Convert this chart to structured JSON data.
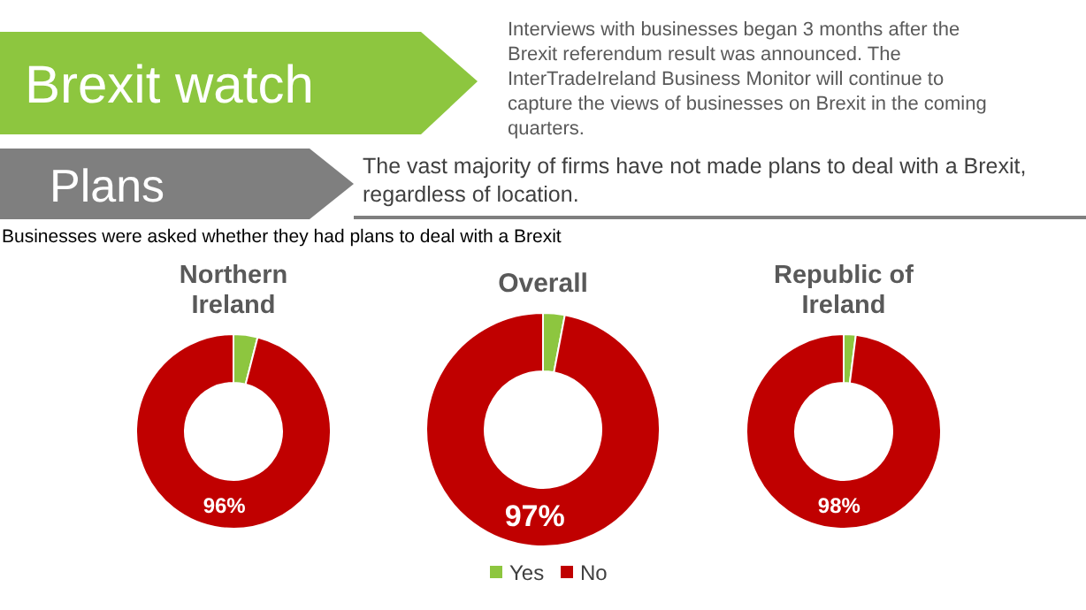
{
  "chart_data": [
    {
      "type": "other",
      "title": "Brexit watch",
      "subtitle": "Plans",
      "annotations": [
        "Interviews with businesses began 3 months after the Brexit referendum result was announced. The InterTradeIreland Business Monitor will continue to capture the views of businesses on Brexit in the coming quarters.",
        "The vast majority of firms have not made plans to deal with a Brexit, regardless of location.",
        "Businesses were asked whether they had plans to deal with a Brexit"
      ]
    },
    {
      "type": "donut",
      "title": "Northern Ireland",
      "categories": [
        null,
        null
      ],
      "values": [
        4,
        96
      ],
      "colors": [
        "#8dc63f",
        "#c00000"
      ],
      "value_labels": [
        null,
        "96%"
      ]
    },
    {
      "type": "donut",
      "title": "Overall",
      "categories": [
        "Yes",
        "No"
      ],
      "values": [
        3,
        97
      ],
      "colors": [
        "#8dc63f",
        "#c00000"
      ],
      "value_labels": [
        null,
        "97%"
      ],
      "legend": "bottom"
    },
    {
      "type": "donut",
      "title": "Republic of Ireland",
      "categories": [
        null,
        null
      ],
      "values": [
        2,
        98
      ],
      "colors": [
        "#8dc63f",
        "#c00000"
      ],
      "value_labels": [
        null,
        "98%"
      ]
    }
  ]
}
